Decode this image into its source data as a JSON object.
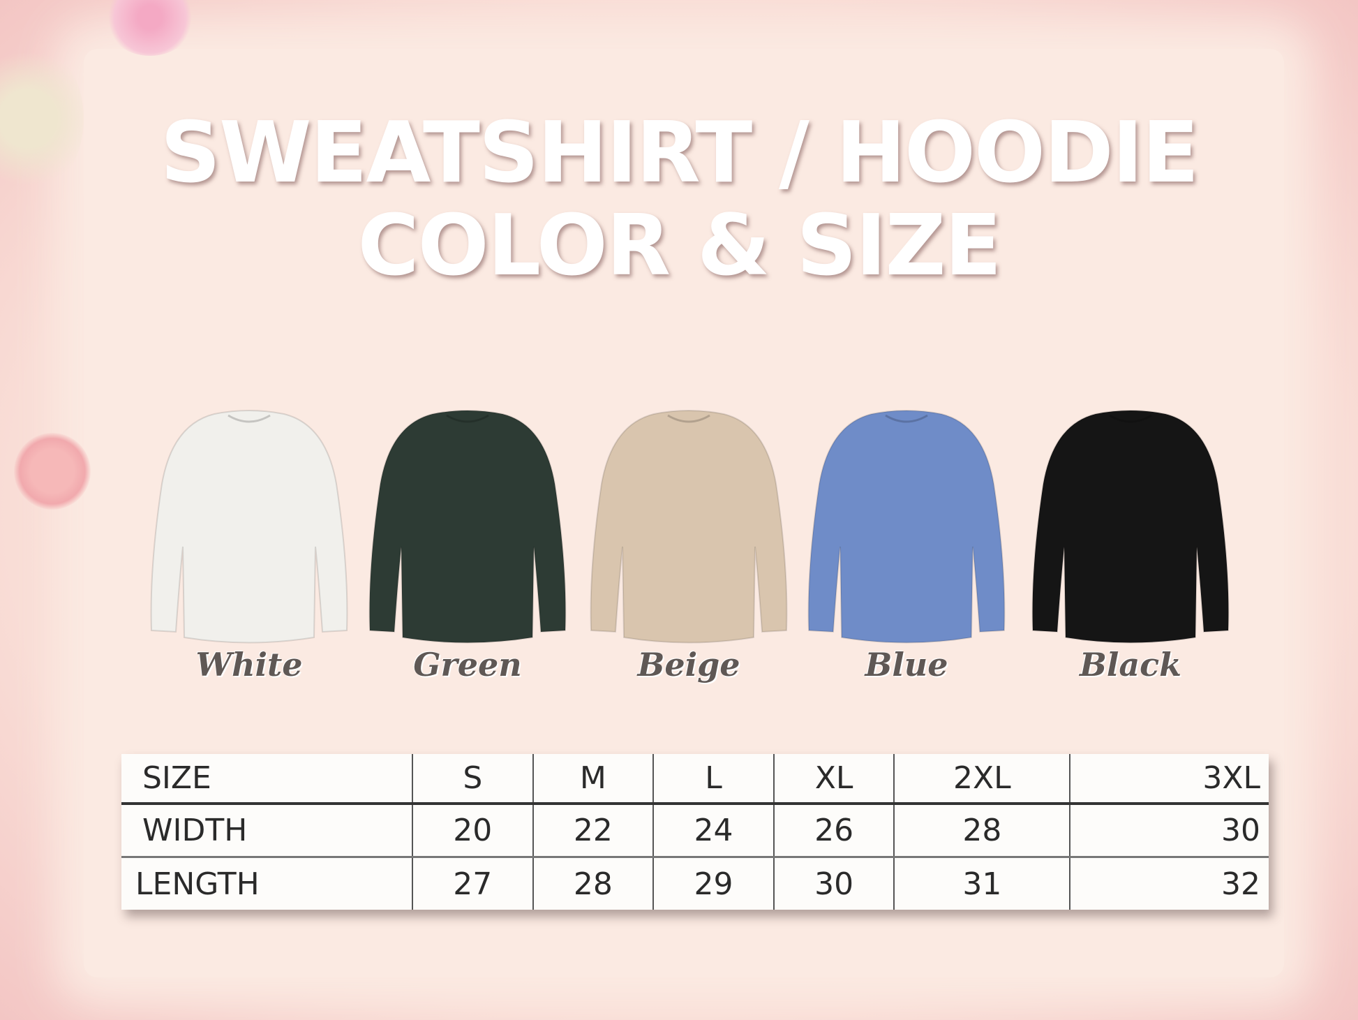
{
  "title": {
    "line1": "SWEATSHIRT / HOODIE",
    "line2": "COLOR & SIZE"
  },
  "colors": [
    {
      "name": "White",
      "hex": "#f1f0ec"
    },
    {
      "name": "Green",
      "hex": "#2d3b34"
    },
    {
      "name": "Beige",
      "hex": "#d9c5ae"
    },
    {
      "name": "Blue",
      "hex": "#6f8cc8"
    },
    {
      "name": "Black",
      "hex": "#151515"
    }
  ],
  "size_table": {
    "header": [
      "SIZE",
      "S",
      "M",
      "L",
      "XL",
      "2XL",
      "3XL"
    ],
    "rows": [
      [
        "WIDTH",
        "20",
        "22",
        "24",
        "26",
        "28",
        "30"
      ],
      [
        "LENGTH",
        "27",
        "28",
        "29",
        "30",
        "31",
        "32"
      ]
    ]
  }
}
